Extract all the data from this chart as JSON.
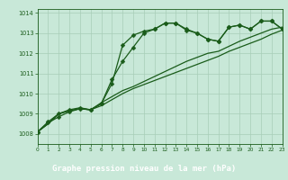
{
  "bg_color": "#c8e8d8",
  "plot_bg_color": "#c8e8d8",
  "footer_bg": "#2d6e2d",
  "line_color": "#1a5c1a",
  "grid_color": "#a8cdb8",
  "title": "Graphe pression niveau de la mer (hPa)",
  "xlim": [
    0,
    23
  ],
  "ylim": [
    1007.5,
    1014.2
  ],
  "yticks": [
    1008,
    1009,
    1010,
    1011,
    1012,
    1013,
    1014
  ],
  "xticks": [
    0,
    1,
    2,
    3,
    4,
    5,
    6,
    7,
    8,
    9,
    10,
    11,
    12,
    13,
    14,
    15,
    16,
    17,
    18,
    19,
    20,
    21,
    22,
    23
  ],
  "series": [
    {
      "x": [
        0,
        1,
        2,
        3,
        4,
        5,
        6,
        7,
        8,
        9,
        10,
        11,
        12,
        13,
        14,
        15,
        16,
        17,
        18,
        19,
        20,
        21,
        22,
        23
      ],
      "y": [
        1008.1,
        1008.6,
        1009.0,
        1009.2,
        1009.3,
        1009.2,
        1009.5,
        1010.5,
        1012.4,
        1012.9,
        1013.1,
        1013.2,
        1013.5,
        1013.5,
        1013.2,
        1013.0,
        1012.7,
        1012.6,
        1013.3,
        1013.4,
        1013.2,
        1013.6,
        1013.6,
        1013.2
      ],
      "has_marker": true
    },
    {
      "x": [
        0,
        1,
        2,
        3,
        4,
        5,
        6,
        7,
        8,
        9,
        10,
        11,
        12,
        13,
        14,
        15,
        16,
        17,
        18,
        19,
        20,
        21,
        22,
        23
      ],
      "y": [
        1008.1,
        1008.5,
        1009.0,
        1009.15,
        1009.25,
        1009.2,
        1009.4,
        1009.7,
        1010.0,
        1010.25,
        1010.45,
        1010.65,
        1010.85,
        1011.05,
        1011.25,
        1011.45,
        1011.65,
        1011.85,
        1012.1,
        1012.3,
        1012.5,
        1012.7,
        1012.95,
        1013.15
      ],
      "has_marker": false
    },
    {
      "x": [
        0,
        1,
        2,
        3,
        4,
        5,
        6,
        7,
        8,
        9,
        10,
        11,
        12,
        13,
        14,
        15,
        16,
        17,
        18,
        19,
        20,
        21,
        22,
        23
      ],
      "y": [
        1008.1,
        1008.5,
        1009.0,
        1009.15,
        1009.25,
        1009.2,
        1009.55,
        1009.85,
        1010.15,
        1010.35,
        1010.6,
        1010.85,
        1011.1,
        1011.35,
        1011.6,
        1011.8,
        1012.0,
        1012.1,
        1012.35,
        1012.6,
        1012.8,
        1013.0,
        1013.2,
        1013.3
      ],
      "has_marker": false
    },
    {
      "x": [
        0,
        1,
        2,
        3,
        4,
        5,
        6,
        7,
        8,
        9,
        10,
        11,
        12,
        13,
        14,
        15,
        16,
        17,
        18,
        19,
        20,
        21,
        22,
        23
      ],
      "y": [
        1008.1,
        1008.55,
        1008.85,
        1009.1,
        1009.25,
        1009.2,
        1009.5,
        1010.7,
        1011.6,
        1012.3,
        1013.0,
        1013.2,
        1013.5,
        1013.5,
        1013.15,
        1013.0,
        1012.7,
        1012.6,
        1013.3,
        1013.4,
        1013.2,
        1013.6,
        1013.6,
        1013.2
      ],
      "has_marker": true
    }
  ]
}
